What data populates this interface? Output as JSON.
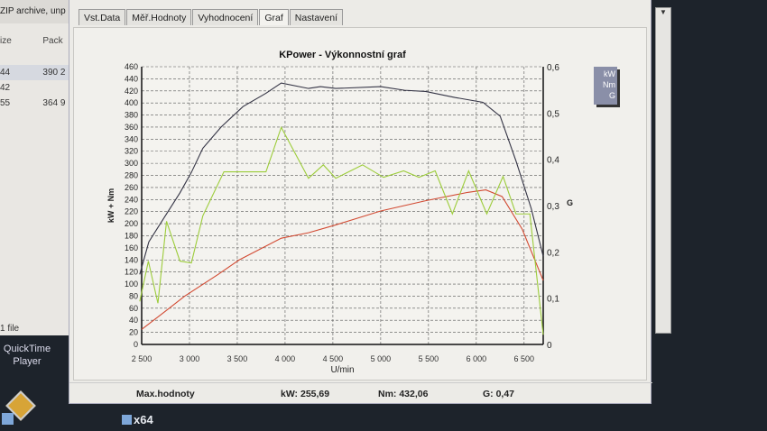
{
  "background_window": {
    "title": "ZIP archive, unp",
    "columns": [
      "ize",
      "Pack"
    ],
    "rows": [
      [
        "44",
        "390 2"
      ],
      [
        "42",
        ""
      ],
      [
        "55",
        "364 9"
      ]
    ],
    "status": "1 file"
  },
  "desktop": {
    "icons": [
      {
        "label": "QuickTime Player"
      },
      {
        "label": "x64"
      }
    ]
  },
  "tabs": [
    {
      "label": "Vst.Data"
    },
    {
      "label": "Měř.Hodnoty"
    },
    {
      "label": "Vyhodnocení"
    },
    {
      "label": "Graf",
      "active": true
    },
    {
      "label": "Nastavení"
    }
  ],
  "footer": {
    "label": "Max.hodnoty",
    "kw": "kW: 255,69",
    "nm": "Nm: 432,06",
    "g": "G: 0,47"
  },
  "chart_data": {
    "type": "line",
    "title": "KPower - Výkonnostní graf",
    "xlabel": "U/min",
    "ylabel": "kW + Nm",
    "y2label": "G",
    "xlim": [
      2500,
      6700
    ],
    "ylim": [
      0,
      460
    ],
    "y2lim": [
      0,
      0.6
    ],
    "xticks": [
      "2 500",
      "3 000",
      "3 500",
      "4 000",
      "4 500",
      "5 000",
      "5 500",
      "6 000",
      "6 500"
    ],
    "xtick_values": [
      2500,
      3000,
      3500,
      4000,
      4500,
      5000,
      5500,
      6000,
      6500
    ],
    "yticks": [
      0,
      20,
      40,
      60,
      80,
      100,
      120,
      140,
      160,
      180,
      200,
      220,
      240,
      260,
      280,
      300,
      320,
      340,
      360,
      380,
      400,
      420,
      440,
      460
    ],
    "y2ticks": [
      "0",
      "0,1",
      "0,2",
      "0,3",
      "0,4",
      "0,5",
      "0,6"
    ],
    "y2tick_values": [
      0,
      0.1,
      0.2,
      0.3,
      0.4,
      0.5,
      0.6
    ],
    "grid": true,
    "legend": "top-right",
    "series": [
      {
        "name": "kW",
        "color": "#d24a32",
        "axis": "left",
        "x": [
          2500,
          2740,
          2950,
          3300,
          3520,
          3960,
          4245,
          4530,
          5000,
          5470,
          5915,
          6100,
          6270,
          6480,
          6700
        ],
        "y": [
          25,
          54,
          80,
          116,
          140,
          176,
          185,
          198,
          221,
          238,
          252,
          256,
          245,
          191,
          106
        ]
      },
      {
        "name": "Nm",
        "color": "#333344",
        "axis": "left",
        "x": [
          2480,
          2575,
          2755,
          2900,
          3020,
          3140,
          3330,
          3560,
          3800,
          3960,
          4245,
          4370,
          4530,
          5000,
          5250,
          5470,
          5780,
          6070,
          6250,
          6415,
          6575,
          6700
        ],
        "y": [
          116,
          170,
          215,
          251,
          285,
          325,
          360,
          394,
          416,
          433,
          424,
          427,
          424,
          427,
          421,
          419,
          409,
          401,
          378,
          304,
          225,
          146
        ]
      },
      {
        "name": "G",
        "color": "#9ccc3a",
        "axis": "right",
        "x": [
          2480,
          2570,
          2670,
          2760,
          2900,
          3020,
          3140,
          3360,
          3800,
          3960,
          4245,
          4400,
          4530,
          4810,
          5030,
          5240,
          5400,
          5570,
          5750,
          5920,
          6110,
          6280,
          6415,
          6560,
          6700
        ],
        "y": [
          0.093,
          0.18,
          0.089,
          0.266,
          0.18,
          0.176,
          0.278,
          0.373,
          0.373,
          0.469,
          0.359,
          0.388,
          0.359,
          0.388,
          0.361,
          0.375,
          0.361,
          0.375,
          0.282,
          0.375,
          0.282,
          0.363,
          0.282,
          0.282,
          0.021
        ]
      }
    ]
  }
}
